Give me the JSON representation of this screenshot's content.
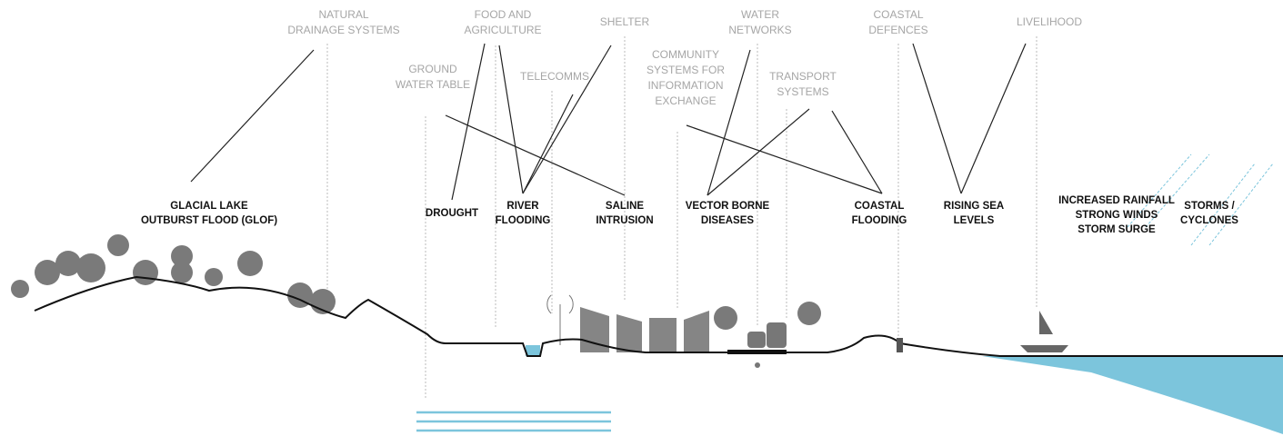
{
  "systems": [
    {
      "label": [
        "NATURAL",
        "DRAINAGE SYSTEMS"
      ]
    },
    {
      "label": [
        "FOOD AND",
        "AGRICULTURE"
      ]
    },
    {
      "label": [
        "SHELTER"
      ]
    },
    {
      "label": [
        "WATER",
        "NETWORKS"
      ]
    },
    {
      "label": [
        "COASTAL",
        "DEFENCES"
      ]
    },
    {
      "label": [
        "LIVELIHOOD"
      ]
    },
    {
      "label": [
        "GROUND",
        "WATER TABLE"
      ]
    },
    {
      "label": [
        "TELECOMMS"
      ]
    },
    {
      "label": [
        "COMMUNITY",
        "SYSTEMS FOR",
        "INFORMATION",
        "EXCHANGE"
      ]
    },
    {
      "label": [
        "TRANSPORT",
        "SYSTEMS"
      ]
    }
  ],
  "hazards": [
    {
      "label": [
        "GLACIAL LAKE",
        "OUTBURST FLOOD (GLOF)"
      ]
    },
    {
      "label": [
        "DROUGHT"
      ]
    },
    {
      "label": [
        "RIVER",
        "FLOODING"
      ]
    },
    {
      "label": [
        "SALINE",
        "INTRUSION"
      ]
    },
    {
      "label": [
        "VECTOR BORNE",
        "DISEASES"
      ]
    },
    {
      "label": [
        "COASTAL",
        "FLOODING"
      ]
    },
    {
      "label": [
        "RISING SEA",
        "LEVELS"
      ]
    },
    {
      "label": [
        "INCREASED RAINFALL",
        "STRONG WINDS",
        "STORM SURGE"
      ]
    },
    {
      "label": [
        "STORMS /",
        "CYCLONES"
      ]
    }
  ]
}
